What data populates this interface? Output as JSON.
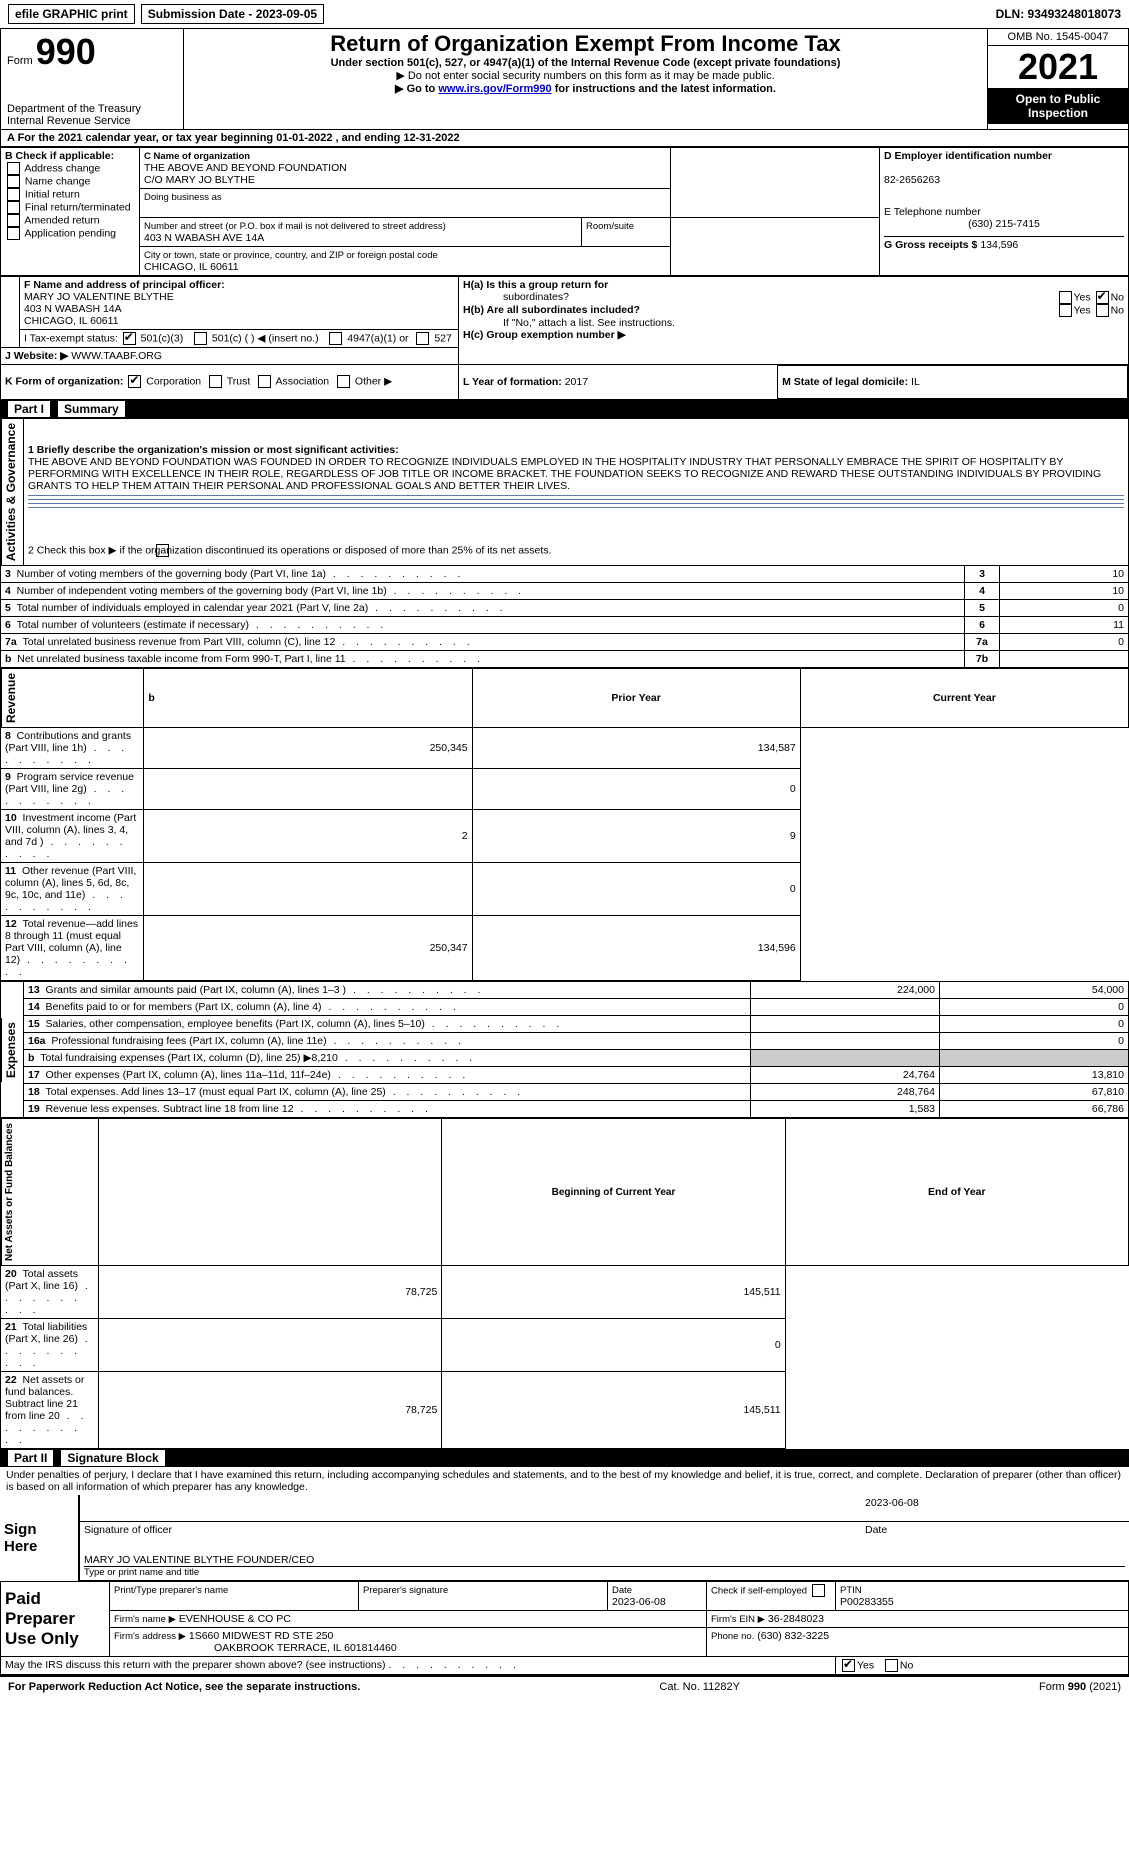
{
  "topbar": {
    "efile_label": "efile GRAPHIC print",
    "submission_label": "Submission Date - 2023-09-05",
    "dln_label": "DLN: 93493248018073"
  },
  "header": {
    "form_word": "Form",
    "form_number": "990",
    "dept": "Department of the Treasury",
    "irs": "Internal Revenue Service",
    "title": "Return of Organization Exempt From Income Tax",
    "subtitle": "Under section 501(c), 527, or 4947(a)(1) of the Internal Revenue Code (except private foundations)",
    "instr1": "▶ Do not enter social security numbers on this form as it may be made public.",
    "instr2_pre": "▶ Go to ",
    "instr2_link": "www.irs.gov/Form990",
    "instr2_post": " for instructions and the latest information.",
    "omb": "OMB No. 1545-0047",
    "year": "2021",
    "open_public": "Open to Public Inspection"
  },
  "lineA": {
    "text": "A For the 2021 calendar year, or tax year beginning 01-01-2022   , and ending 12-31-2022"
  },
  "boxB": {
    "title": "B Check if applicable:",
    "items": [
      "Address change",
      "Name change",
      "Initial return",
      "Final return/terminated",
      "Amended return",
      "Application pending"
    ]
  },
  "boxC": {
    "label": "C Name of organization",
    "name": "THE ABOVE AND BEYOND FOUNDATION",
    "co": "C/O MARY JO BLYTHE",
    "dba_label": "Doing business as",
    "addr_label": "Number and street (or P.O. box if mail is not delivered to street address)",
    "room_label": "Room/suite",
    "addr": "403 N WABASH AVE 14A",
    "city_label": "City or town, state or province, country, and ZIP or foreign postal code",
    "city": "CHICAGO, IL  60611"
  },
  "boxD": {
    "label": "D Employer identification number",
    "value": "82-2656263"
  },
  "boxE": {
    "label": "E Telephone number",
    "value": "(630) 215-7415"
  },
  "boxG": {
    "label": "G Gross receipts $",
    "value": "134,596"
  },
  "boxF": {
    "label": "F  Name and address of principal officer:",
    "name": "MARY JO VALENTINE BLYTHE",
    "addr1": "403 N WABASH 14A",
    "addr2": "CHICAGO, IL  60611"
  },
  "boxH": {
    "ha_label": "H(a)  Is this a group return for",
    "ha_sub": "subordinates?",
    "hb_label": "H(b)  Are all subordinates included?",
    "hb_note": "If \"No,\" attach a list. See instructions.",
    "hc_label": "H(c)  Group exemption number ▶",
    "yes": "Yes",
    "no": "No"
  },
  "boxI": {
    "label": "I   Tax-exempt status:",
    "opt1": "501(c)(3)",
    "opt2": "501(c) (  ) ◀ (insert no.)",
    "opt3": "4947(a)(1) or",
    "opt4": "527"
  },
  "boxJ": {
    "label": "J   Website: ▶",
    "value": "WWW.TAABF.ORG"
  },
  "boxK": {
    "label": "K Form of organization:",
    "opts": [
      "Corporation",
      "Trust",
      "Association",
      "Other ▶"
    ]
  },
  "boxL": {
    "label": "L Year of formation: ",
    "value": "2017"
  },
  "boxM": {
    "label": "M State of legal domicile: ",
    "value": "IL"
  },
  "part1": {
    "label": "Part I",
    "title": "Summary",
    "line1_label": "1  Briefly describe the organization's mission or most significant activities:",
    "mission": "THE ABOVE AND BEYOND FOUNDATION WAS FOUNDED IN ORDER TO RECOGNIZE INDIVIDUALS EMPLOYED IN THE HOSPITALITY INDUSTRY THAT PERSONALLY EMBRACE THE SPIRIT OF HOSPITALITY BY PERFORMING WITH EXCELLENCE IN THEIR ROLE, REGARDLESS OF JOB TITLE OR INCOME BRACKET. THE FOUNDATION SEEKS TO RECOGNIZE AND REWARD THESE OUTSTANDING INDIVIDUALS BY PROVIDING GRANTS TO HELP THEM ATTAIN THEIR PERSONAL AND PROFESSIONAL GOALS AND BETTER THEIR LIVES.",
    "line2": "2    Check this box ▶       if the organization discontinued its operations or disposed of more than 25% of its net assets.",
    "rows_gov": [
      {
        "n": "3",
        "label": "Number of voting members of the governing body (Part VI, line 1a)",
        "box": "3",
        "val": "10"
      },
      {
        "n": "4",
        "label": "Number of independent voting members of the governing body (Part VI, line 1b)",
        "box": "4",
        "val": "10"
      },
      {
        "n": "5",
        "label": "Total number of individuals employed in calendar year 2021 (Part V, line 2a)",
        "box": "5",
        "val": "0"
      },
      {
        "n": "6",
        "label": "Total number of volunteers (estimate if necessary)",
        "box": "6",
        "val": "11"
      },
      {
        "n": "7a",
        "label": "Total unrelated business revenue from Part VIII, column (C), line 12",
        "box": "7a",
        "val": "0"
      },
      {
        "n": "b",
        "label": "Net unrelated business taxable income from Form 990-T, Part I, line 11",
        "box": "7b",
        "val": ""
      }
    ],
    "hdr_prior": "Prior Year",
    "hdr_current": "Current Year",
    "rows_rev": [
      {
        "n": "8",
        "label": "Contributions and grants (Part VIII, line 1h)",
        "p": "250,345",
        "c": "134,587"
      },
      {
        "n": "9",
        "label": "Program service revenue (Part VIII, line 2g)",
        "p": "",
        "c": "0"
      },
      {
        "n": "10",
        "label": "Investment income (Part VIII, column (A), lines 3, 4, and 7d )",
        "p": "2",
        "c": "9"
      },
      {
        "n": "11",
        "label": "Other revenue (Part VIII, column (A), lines 5, 6d, 8c, 9c, 10c, and 11e)",
        "p": "",
        "c": "0"
      },
      {
        "n": "12",
        "label": "Total revenue—add lines 8 through 11 (must equal Part VIII, column (A), line 12)",
        "p": "250,347",
        "c": "134,596"
      }
    ],
    "rows_exp": [
      {
        "n": "13",
        "label": "Grants and similar amounts paid (Part IX, column (A), lines 1–3 )",
        "p": "224,000",
        "c": "54,000"
      },
      {
        "n": "14",
        "label": "Benefits paid to or for members (Part IX, column (A), line 4)",
        "p": "",
        "c": "0"
      },
      {
        "n": "15",
        "label": "Salaries, other compensation, employee benefits (Part IX, column (A), lines 5–10)",
        "p": "",
        "c": "0"
      },
      {
        "n": "16a",
        "label": "Professional fundraising fees (Part IX, column (A), line 11e)",
        "p": "",
        "c": "0"
      },
      {
        "n": "b",
        "label": "Total fundraising expenses (Part IX, column (D), line 25) ▶8,210",
        "p": "SHADE",
        "c": "SHADE"
      },
      {
        "n": "17",
        "label": "Other expenses (Part IX, column (A), lines 11a–11d, 11f–24e)",
        "p": "24,764",
        "c": "13,810"
      },
      {
        "n": "18",
        "label": "Total expenses. Add lines 13–17 (must equal Part IX, column (A), line 25)",
        "p": "248,764",
        "c": "67,810"
      },
      {
        "n": "19",
        "label": "Revenue less expenses. Subtract line 18 from line 12",
        "p": "1,583",
        "c": "66,786"
      }
    ],
    "hdr_begin": "Beginning of Current Year",
    "hdr_end": "End of Year",
    "rows_net": [
      {
        "n": "20",
        "label": "Total assets (Part X, line 16)",
        "p": "78,725",
        "c": "145,511"
      },
      {
        "n": "21",
        "label": "Total liabilities (Part X, line 26)",
        "p": "",
        "c": "0"
      },
      {
        "n": "22",
        "label": "Net assets or fund balances. Subtract line 21 from line 20",
        "p": "78,725",
        "c": "145,511"
      }
    ],
    "vert_gov": "Activities & Governance",
    "vert_rev": "Revenue",
    "vert_exp": "Expenses",
    "vert_net": "Net Assets or Fund Balances"
  },
  "part2": {
    "label": "Part II",
    "title": "Signature Block",
    "declaration": "Under penalties of perjury, I declare that I have examined this return, including accompanying schedules and statements, and to the best of my knowledge and belief, it is true, correct, and complete. Declaration of preparer (other than officer) is based on all information of which preparer has any knowledge.",
    "sign_here": "Sign Here",
    "sig_officer": "Signature of officer",
    "sig_date_label": "Date",
    "sig_date": "2023-06-08",
    "officer_name": "MARY JO VALENTINE BLYTHE  FOUNDER/CEO",
    "officer_type": "Type or print name and title",
    "paid_prep": "Paid Preparer Use Only",
    "prep_name_label": "Print/Type preparer's name",
    "prep_sig_label": "Preparer's signature",
    "prep_date_label": "Date",
    "prep_date": "2023-06-08",
    "prep_check_label": "Check         if self-employed",
    "ptin_label": "PTIN",
    "ptin": "P00283355",
    "firm_name_label": "Firm's name    ▶",
    "firm_name": "EVENHOUSE & CO PC",
    "firm_ein_label": "Firm's EIN ▶",
    "firm_ein": "36-2848023",
    "firm_addr_label": "Firm's address ▶",
    "firm_addr1": "1S660 MIDWEST RD STE 250",
    "firm_addr2": "OAKBROOK TERRACE, IL  601814460",
    "firm_phone_label": "Phone no.",
    "firm_phone": "(630) 832-3225",
    "discuss": "May the IRS discuss this return with the preparer shown above? (see instructions)",
    "yes": "Yes",
    "no": "No"
  },
  "footer": {
    "left": "For Paperwork Reduction Act Notice, see the separate instructions.",
    "mid": "Cat. No. 11282Y",
    "right_form": "Form ",
    "right_num": "990",
    "right_year": " (2021)"
  },
  "colors": {
    "link": "#0000cc",
    "line": "#5a7bb0"
  }
}
